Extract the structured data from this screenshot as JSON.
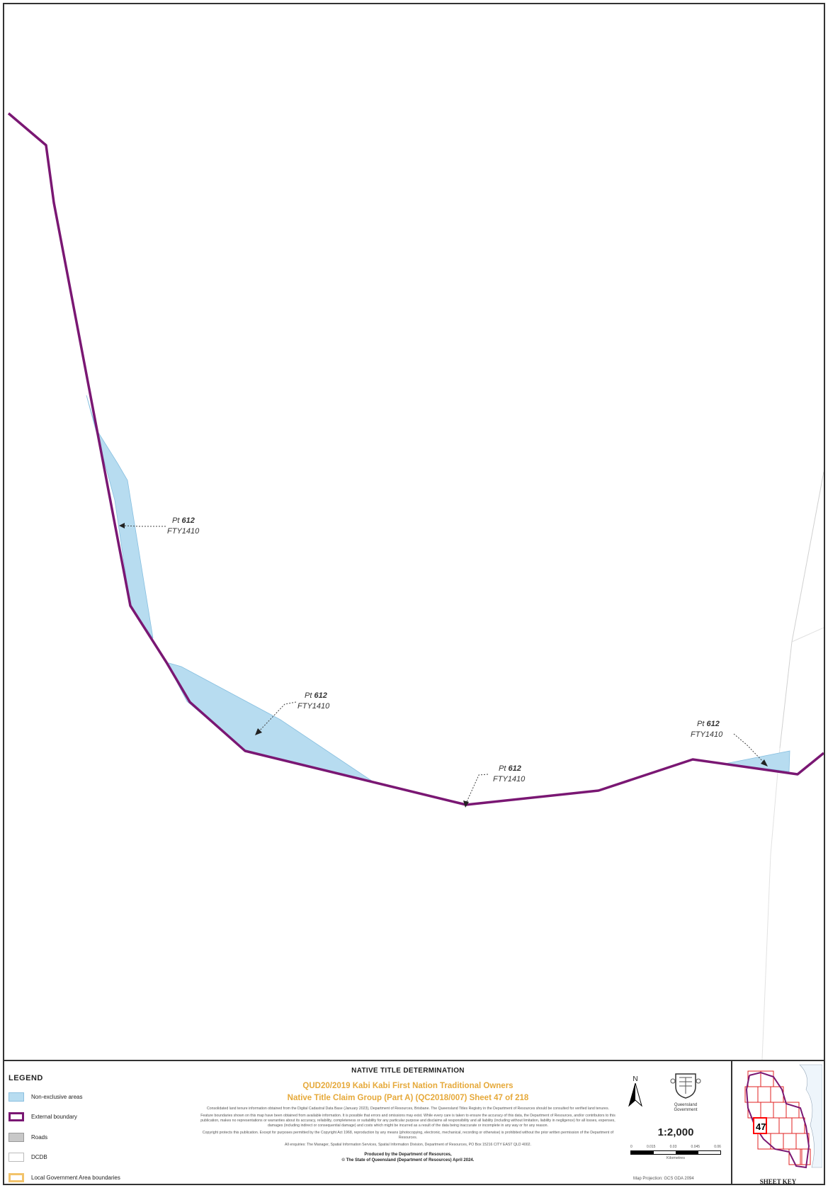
{
  "map": {
    "colors": {
      "boundary": "#7a1773",
      "non_exclusive_fill": "#b7dcf0",
      "label_text": "#333333"
    },
    "labels": [
      {
        "name": "Pt 612",
        "number": "612",
        "prefix": "Pt",
        "plan": "FTY1410"
      },
      {
        "name": "Pt 612",
        "number": "612",
        "prefix": "Pt",
        "plan": "FTY1410"
      },
      {
        "name": "Pt 612",
        "number": "612",
        "prefix": "Pt",
        "plan": "FTY1410"
      },
      {
        "name": "Pt 612",
        "number": "612",
        "prefix": "Pt",
        "plan": "FTY1410"
      }
    ]
  },
  "legend": {
    "title": "LEGEND",
    "items": [
      {
        "label": "Non-exclusive areas"
      },
      {
        "label": "External boundary"
      },
      {
        "label": "Roads"
      },
      {
        "label": "DCDB"
      },
      {
        "label": "Local Government Area boundaries"
      }
    ]
  },
  "header": {
    "determination": "NATIVE TITLE DETERMINATION",
    "title_line1": "QUD20/2019 Kabi Kabi First Nation Traditional Owners",
    "title_line2": "Native Title Claim Group (Part A) (QC2018/007) Sheet 47 of 218"
  },
  "notes": {
    "data_source": "Consolidated land tenure information obtained from the Digital Cadastral Data Base (January 2023), Department of Resources, Brisbane. The Queensland Titles Registry in the Department of Resources should be consulted for verified land tenures.",
    "disclaimer": "Feature boundaries shown on this map have been obtained from available information. It is possible that errors and omissions may exist. While every care is taken to ensure the accuracy of this data, the Department of Resources, and/or contributors to this publication, makes no representations or warranties about its accuracy, reliability, completeness or suitability for any particular purpose and disclaims all responsibility and all liability (including without limitation, liability in negligence) for all losses, expenses, damages (including indirect or consequential damage) and costs which might be incurred as a result of the data being inaccurate or incomplete in any way or for any reason.",
    "copyright": "Copyright protects this publication. Except for purposes permitted by the Copyright Act 1968, reproduction by any means (photocopying, electronic, mechanical, recording or otherwise) is prohibited without the prior written permission of the Department of Resources.",
    "enquiries": "All enquiries: The Manager, Spatial Information Services, Spatial Information Division, Department of Resources, PO Box 15216 CITY EAST QLD 4002."
  },
  "footer": {
    "produced_line1": "Produced by the Department of Resources,",
    "produced_line2": "© The State of Queensland (Department of Resources) April 2024."
  },
  "scale": {
    "north_label": "N",
    "government_line1": "Queensland",
    "government_line2": "Government",
    "ratio": "1:2,000",
    "ticks": [
      "0",
      "0.015",
      "0.03",
      "0.045",
      "0.06"
    ],
    "units": "Kilometres",
    "projection": "Map Projection: GCS GDA 2094"
  },
  "sheet_key": {
    "label": "SHEET KEY",
    "current_sheet": "47",
    "grid_color": "#e02020",
    "highlight_color": "#ff0000"
  }
}
